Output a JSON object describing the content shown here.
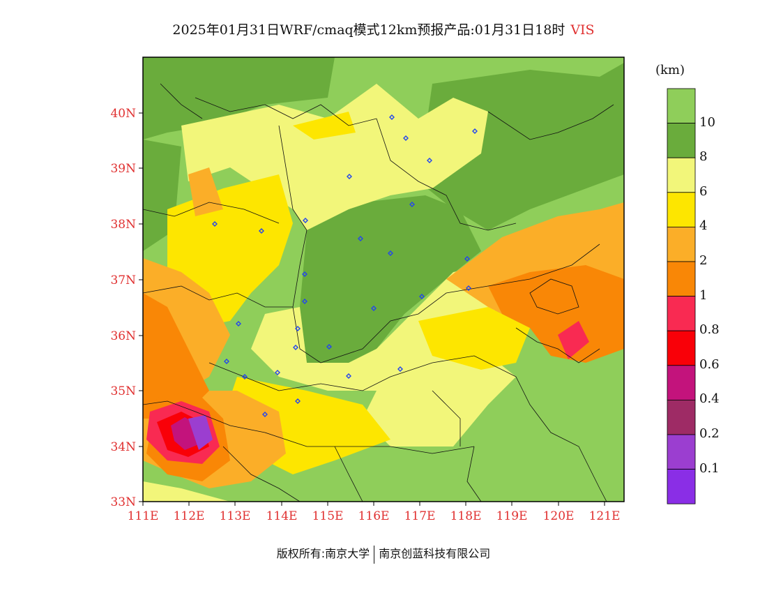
{
  "title": {
    "main": "2025年01月31日WRF/cmaq模式12km预报产品:01月31日18时",
    "variable": "VIS"
  },
  "legend": {
    "unit": "(km)",
    "labels": [
      "10",
      "8",
      "6",
      "4",
      "2",
      "1",
      "0.8",
      "0.6",
      "0.4",
      "0.2",
      "0.1"
    ],
    "colors": [
      "#8fce5a",
      "#6aac3c",
      "#f2f67a",
      "#fde600",
      "#fbae28",
      "#f98706",
      "#f92a52",
      "#f90008",
      "#c3137c",
      "#9e2b65",
      "#9b3ed0",
      "#8a2ee6"
    ]
  },
  "map": {
    "lon_labels": [
      "111E",
      "112E",
      "113E",
      "114E",
      "115E",
      "116E",
      "117E",
      "118E",
      "119E",
      "120E",
      "121E"
    ],
    "lat_labels": [
      "40N",
      "39N",
      "38N",
      "37N",
      "36N",
      "35N",
      "34N",
      "33N"
    ],
    "station_marker_color": "#2244ee"
  },
  "footer": {
    "left": "版权所有:南京大学",
    "right": "南京创蓝科技有限公司"
  }
}
